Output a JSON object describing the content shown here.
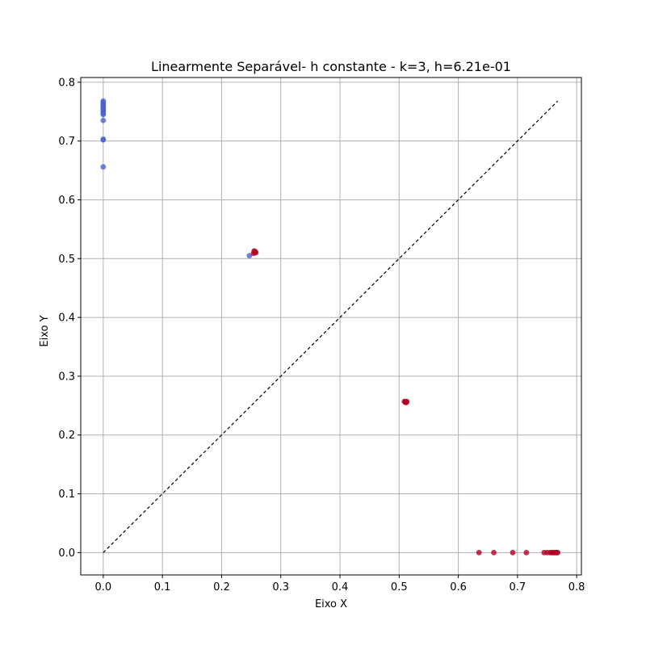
{
  "chart_data": {
    "type": "scatter",
    "title": "Linearmente Separável- h constante - k=3, h=6.21e-01",
    "xlabel": "Eixo X",
    "ylabel": "Eixo Y",
    "xlim": [
      -0.038,
      0.808
    ],
    "ylim": [
      -0.038,
      0.808
    ],
    "xticks": [
      "0.0",
      "0.1",
      "0.2",
      "0.3",
      "0.4",
      "0.5",
      "0.6",
      "0.7",
      "0.8"
    ],
    "yticks": [
      "0.0",
      "0.1",
      "0.2",
      "0.3",
      "0.4",
      "0.5",
      "0.6",
      "0.7",
      "0.8"
    ],
    "grid": true,
    "reference_line": {
      "from": [
        0,
        0
      ],
      "to": [
        0.768,
        0.768
      ],
      "style": "dashed",
      "color": "#000000"
    },
    "colors": {
      "blue": "#4a63cc",
      "red": "#b50026"
    },
    "series": [
      {
        "color": "blue",
        "points": [
          [
            0,
            0.768
          ],
          [
            0,
            0.766
          ],
          [
            0,
            0.764
          ],
          [
            0,
            0.762
          ],
          [
            0,
            0.76
          ],
          [
            0,
            0.758
          ],
          [
            0,
            0.756
          ],
          [
            0,
            0.754
          ],
          [
            0,
            0.752
          ],
          [
            0,
            0.75
          ],
          [
            0,
            0.747
          ],
          [
            0,
            0.745
          ],
          [
            0,
            0.735
          ],
          [
            0,
            0.703
          ],
          [
            0,
            0.702
          ],
          [
            0,
            0.656
          ],
          [
            0.247,
            0.505
          ]
        ]
      },
      {
        "color": "red",
        "points": [
          [
            0.254,
            0.509
          ],
          [
            0.256,
            0.511
          ],
          [
            0.257,
            0.512
          ],
          [
            0.255,
            0.513
          ],
          [
            0.258,
            0.51
          ],
          [
            0.509,
            0.257
          ],
          [
            0.511,
            0.256
          ],
          [
            0.512,
            0.255
          ],
          [
            0.513,
            0.257
          ],
          [
            0.51,
            0.256
          ],
          [
            0.635,
            0
          ],
          [
            0.66,
            0
          ],
          [
            0.692,
            0
          ],
          [
            0.715,
            0
          ],
          [
            0.745,
            0
          ],
          [
            0.75,
            0
          ],
          [
            0.755,
            0
          ],
          [
            0.758,
            0
          ],
          [
            0.76,
            0
          ],
          [
            0.762,
            0
          ],
          [
            0.764,
            0
          ],
          [
            0.766,
            0
          ],
          [
            0.768,
            0
          ]
        ]
      }
    ]
  }
}
